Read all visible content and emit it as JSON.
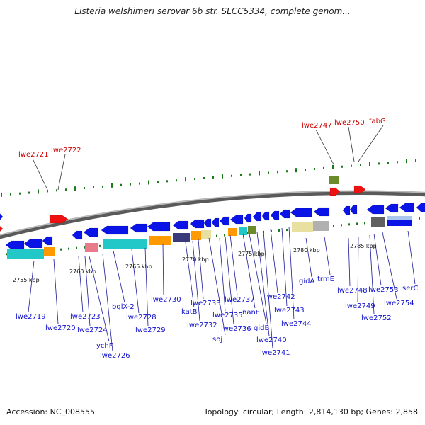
{
  "title": "Listeria welshimeri serovar 6b str. SLCC5334, complete genom...",
  "footer": {
    "accession": "Accession: NC_008555",
    "summary": "Topology: circular; Length: 2,814,130 bp; Genes: 2,858"
  },
  "colors": {
    "forward_gene": "#0a14e6",
    "reverse_gene": "#0a14e6",
    "highlight_gene": "#ee1111",
    "backbone": "#8c8c8c",
    "tick": "#1a7a1a",
    "label_blue": "#1010cc",
    "label_red": "#cc0000",
    "cog_cyan": "#22c8c8",
    "cog_orange": "#ff9900",
    "cog_pink": "#e87a8a",
    "cog_olive": "#6b8a2a",
    "cog_navy": "#3a3a7a",
    "cog_khaki": "#e8e0a0",
    "cog_grey": "#b0b0b0",
    "cog_darkgrey": "#606060"
  },
  "scale_labels": [
    "2755 kbp",
    "2760 kbp",
    "2765 kbp",
    "2770 kbp",
    "2775 kbp",
    "2780 kbp",
    "2785 kbp"
  ],
  "red_labels": [
    "lwe2721",
    "lwe2722",
    "lwe2747",
    "lwe2750",
    "fabG"
  ],
  "blue_labels": [
    "lwe2719",
    "lwe2720",
    "lwe2723",
    "lwe2724",
    "ychF",
    "lwe2726",
    "bglX-2",
    "lwe2728",
    "lwe2729",
    "lwe2730",
    "katB",
    "lwe2732",
    "lwe2733",
    "soj",
    "lwe2735",
    "lwe2736",
    "lwe2737",
    "nanE",
    "gidB",
    "lwe2740",
    "lwe2741",
    "lwe2742",
    "lwe2743",
    "lwe2744",
    "gidA",
    "trmE",
    "lwe2748",
    "lwe2749",
    "lwe2752",
    "lwe2753",
    "lwe2754",
    "serC"
  ]
}
